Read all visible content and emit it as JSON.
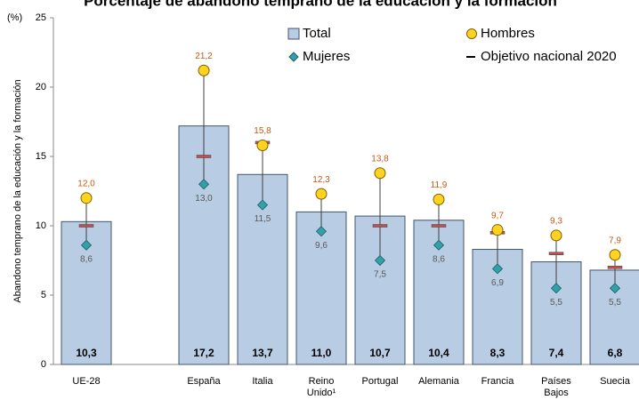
{
  "chart_data": {
    "type": "bar",
    "title": "Porcentaje de abandono temprano de la educación y la formación",
    "unit_label": "(%)",
    "y_label": "Abandono temprano de la educación y la formación",
    "categories": [
      "UE-28",
      null,
      "España",
      "Italia",
      "Reino Unido¹",
      "Portugal",
      "Alemania",
      "Francia",
      "Países Bajos",
      "Suecia"
    ],
    "ylim": [
      0,
      25
    ],
    "yticks": [
      0,
      5,
      10,
      15,
      20,
      25
    ],
    "series": [
      {
        "name": "Total",
        "marker": "bar",
        "color": "#b8cce4",
        "values": [
          10.3,
          null,
          17.2,
          13.7,
          11.0,
          10.7,
          10.4,
          8.3,
          7.4,
          6.8
        ],
        "value_labels": [
          "10,3",
          null,
          "17,2",
          "13,7",
          "11,0",
          "10,7",
          "10,4",
          "8,3",
          "7,4",
          "6,8"
        ]
      },
      {
        "name": "Hombres",
        "marker": "circle",
        "color": "#ffd320",
        "values": [
          12.0,
          null,
          21.2,
          15.8,
          12.3,
          13.8,
          11.9,
          9.7,
          9.3,
          7.9
        ],
        "value_labels": [
          "12,0",
          null,
          "21,2",
          "15,8",
          "12,3",
          "13,8",
          "11,9",
          "9,7",
          "9,3",
          "7,9"
        ]
      },
      {
        "name": "Mujeres",
        "marker": "diamond",
        "color": "#31a0a8",
        "values": [
          8.6,
          null,
          13.0,
          11.5,
          9.6,
          7.5,
          8.6,
          6.9,
          5.5,
          5.5
        ],
        "value_labels": [
          "8,6",
          null,
          "13,0",
          "11,5",
          "9,6",
          "7,5",
          "8,6",
          "6,9",
          "5,5",
          "5,5"
        ]
      },
      {
        "name": "Objetivo nacional 2020",
        "marker": "dash",
        "color": "#c0504d",
        "values": [
          10,
          null,
          15,
          16,
          null,
          10,
          10,
          9.5,
          8,
          7
        ]
      }
    ]
  }
}
